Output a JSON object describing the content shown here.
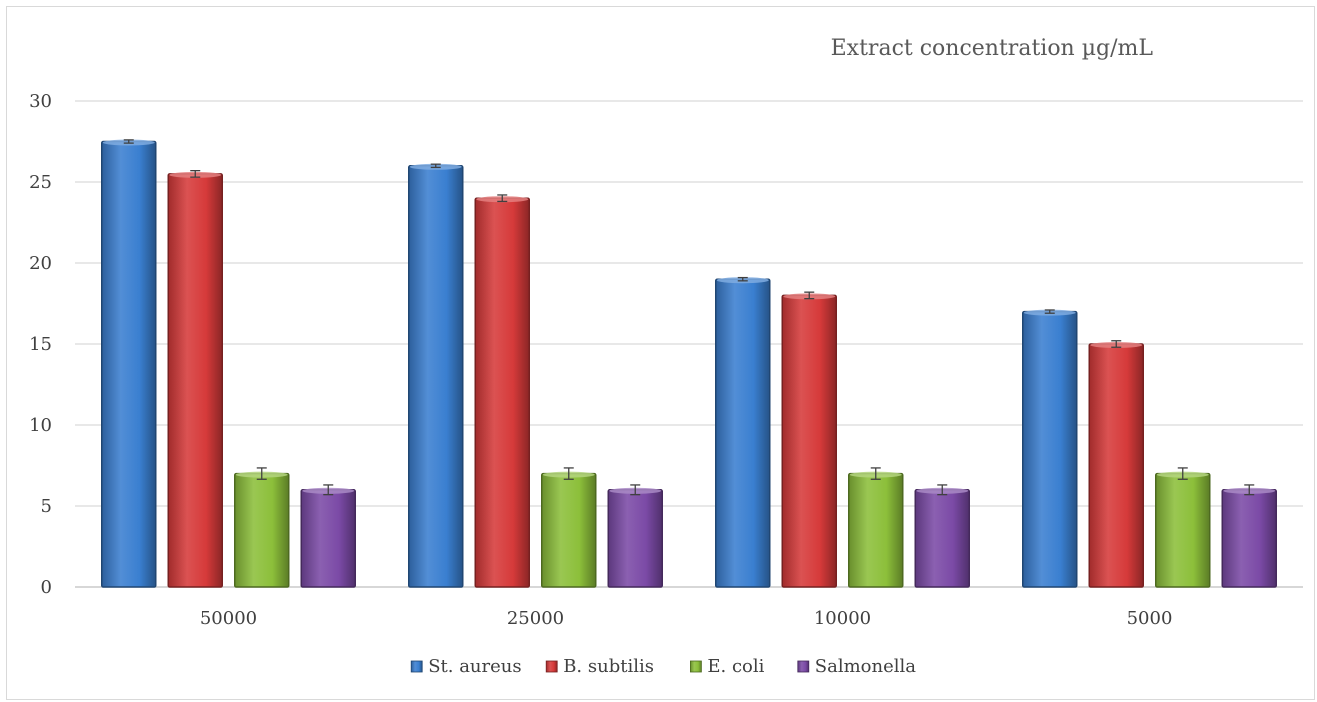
{
  "chart_data": {
    "type": "bar",
    "title": "Extract concentration µg/mL",
    "xlabel": "",
    "ylabel": "",
    "categories": [
      "50000",
      "25000",
      "10000",
      "5000"
    ],
    "ylim": [
      0,
      30
    ],
    "yticks": [
      0,
      5,
      10,
      15,
      20,
      25,
      30
    ],
    "grid": true,
    "legend_position": "bottom",
    "error_bars": true,
    "series": [
      {
        "name": "St. aureus",
        "color": "#3a7fd0",
        "values": [
          27.5,
          26,
          19,
          17
        ],
        "errors": [
          0.1,
          0.1,
          0.1,
          0.1
        ]
      },
      {
        "name": "B. subtilis",
        "color": "#d63a3a",
        "values": [
          25.5,
          24,
          18,
          15
        ],
        "errors": [
          0.2,
          0.2,
          0.2,
          0.2
        ]
      },
      {
        "name": "E. coli",
        "color": "#8cbf3a",
        "values": [
          7,
          7,
          7,
          7
        ],
        "errors": [
          0.35,
          0.35,
          0.35,
          0.35
        ]
      },
      {
        "name": "Salmonella",
        "color": "#7b4aa6",
        "values": [
          6,
          6,
          6,
          6
        ],
        "errors": [
          0.3,
          0.3,
          0.3,
          0.3
        ]
      }
    ]
  }
}
